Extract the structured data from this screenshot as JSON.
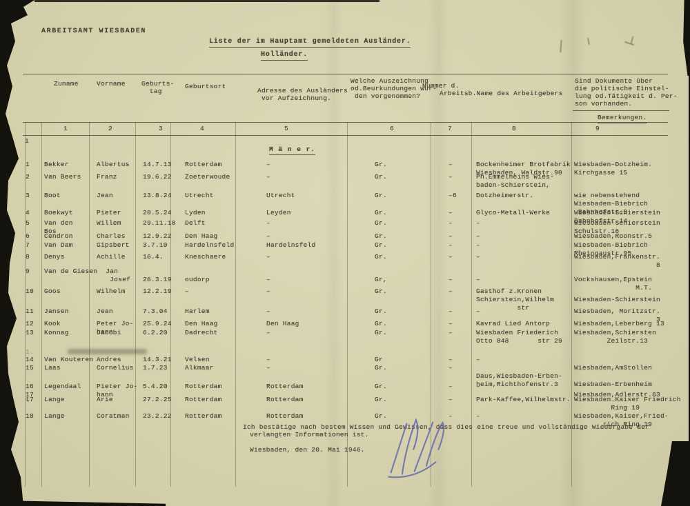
{
  "page": {
    "agency": "ARBEITSAMT WIESBADEN",
    "title": "Liste der im Hauptamt gemeldeten Ausländer.",
    "subtitle": "Holländer.",
    "section_heading": "M ä n e r.",
    "margin_marker": "1",
    "erased_marker": "1."
  },
  "table": {
    "headers": {
      "zuname": "Zuname",
      "vorname": "Vorname",
      "geburtstag": "Geburts-\n  tag",
      "geburtsort": "Geburtsort",
      "adresse": "Adresse des Ausländers\n vor Aufzeichnung.",
      "auszeichnung": "Welche Auszeichnung\nod.Beurkundungen wur-\n den vorgenommen?",
      "nummer": "Nummer d.",
      "arbeitgeber": "Arbeitsb.Name des Arbeitgebers",
      "dokumente": "Sind Dokumente über\ndie politische Einstel-\nlung od.Tätigkeit d. Per-\nson vorhanden.",
      "bemerkungen": "Bemerkungen."
    },
    "column_numbers": [
      "1",
      "2",
      "3",
      "4",
      "5",
      "6",
      "7",
      "8",
      "9"
    ],
    "rows": [
      [
        "1",
        "Bekker",
        "Albertus",
        "14.7.13",
        "Rotterdam",
        "–",
        "Gr.",
        "–",
        "Bockenheimer Brotfabrik\nWiesbaden, Waldstr.90",
        "Wiesbaden-Dotzheim.\nKirchgasse 15"
      ],
      [
        "2",
        "Van Beers",
        "Franz",
        "19.6.22",
        "Zoeterwoude",
        "–",
        "Gr.",
        "–",
        "Ph.Emmelheins Wies-\nbaden-Schierstein,",
        ""
      ],
      [
        "3",
        "Boot",
        "Jean",
        "13.8.24",
        "Utrecht",
        "Utrecht",
        "Gr.",
        "–6",
        "Dotzheimerstr.",
        "wie nebenstehend\nWiesbaden-Biebrich\n Bahnhofstr.9"
      ],
      [
        "4",
        "Boekwyt",
        "Pieter",
        "20.5.24",
        "Lyden",
        "Leyden",
        "Gr.",
        "–",
        "Glyco-Metall-Werke",
        "Wiesbaden-Schierstein\nBahnhofstr.14"
      ],
      [
        "5",
        "Van den\nBos",
        "Willem",
        "29.11.18",
        "Delft",
        "–",
        "Gr.",
        "–",
        "–",
        "Wiesbaden-Schierstein\nSchulstr.16"
      ],
      [
        "6",
        "Cendron",
        "Charles",
        "12.9.22",
        "Den Haag",
        "–",
        "Gr.",
        "–",
        "–",
        "Wiesbaden,Roonstr.5"
      ],
      [
        "7",
        "Van Dam",
        "Gipsbert",
        "3.7.10",
        "Hardelnsfeld",
        "Hardelnsfeld",
        "Gr.",
        "–",
        "–",
        "Wiesbaden-Biebrich\nRheingaustr.95"
      ],
      [
        "8",
        "Denys",
        "Achille",
        "16.4.",
        "Kneschaere",
        "–",
        "Gr.",
        "–",
        "–",
        "Wiesbaden,Frankenstr.\n                    8"
      ],
      [
        "9",
        "Van de Giesen  Jan\n                Josef",
        "",
        "\n26.3.19",
        "\noudorp",
        "\n–",
        "\nGr,",
        "\n–",
        "\n–",
        "\nVockshausen,Epstein\n               M.T."
      ],
      [
        "10",
        "Goos",
        "Wilhelm",
        "12.2.19",
        "–",
        "–",
        "Gr.",
        "–",
        "Gasthof z.Kronen\nSchierstein,Wilhelm\n          str",
        "\nWiesbaden-Schierstein"
      ],
      [
        "11",
        "Jansen",
        "Jean",
        "7.3.04",
        "Harlem",
        "–",
        "Gr.",
        "–",
        "–",
        "Wiesbaden, Moritzstr.\n                    3"
      ],
      [
        "12",
        "Kook",
        "Peter Jo-\nhann",
        "25.9.24",
        "Den Haag",
        "Den Haag",
        "Gr.",
        "–",
        "Kavrad Lied Antorp",
        "Wiesbaden,Leberberg 13"
      ],
      [
        "13",
        "Konnag",
        "Jacobi",
        "6.2.20",
        "Dadrecht",
        "–",
        "Gr.",
        "–",
        "Wiesbaden Friederich\nOtto 848       str 29",
        "Wiesbaden,Schiersten\n        Zeilstr.13"
      ],
      [
        "14",
        "Van Kouteren",
        "Andres",
        "14.3.21",
        "Velsen",
        "–",
        "Gr",
        "–",
        "–",
        "\nWiesbaden,AmStollen"
      ],
      [
        "15",
        "Laas",
        "Cornelius",
        "1.7.23",
        "Alkmaar",
        "–",
        "Gr.",
        "–",
        "\nDaus,Wiesbaden-Erben-\nheim,Richthofenstr.3",
        "\n\nWiesbaden-Erbenheim"
      ],
      [
        "16\n17",
        "Legendaal",
        "Pieter Jo-\nhann",
        "5.4.20",
        "Rotterdam",
        "Rotterdam",
        "Gr.",
        "–",
        "–",
        "\nWiesbaden,Adlerstr.63"
      ],
      [
        "17",
        "Lange",
        "Arie",
        "27.2.25",
        "Rotterdam",
        "Rotterdam",
        "Gr.",
        "–",
        "Park-Kaffee,Wilhelmstr.",
        "Wiesbaden.Kaiser Friedrich\n         Ring 19"
      ],
      [
        "18",
        "Lange",
        "Coratman",
        "23.2.22",
        "Rotterdam",
        "Rotterdam",
        "Gr.",
        "–",
        "–",
        "Wiesbaden,Kaiser,Fried-\n       rich Ring 19"
      ]
    ]
  },
  "footer": {
    "confirmation_line1": "Ich bestätige nach bestem Wissen und Gewissen, dass dies eine treue und vollständige Wiedergabe der",
    "confirmation_line2": "verlangten Informationen ist.",
    "date_line": "Wiesbaden, den 20. Mai 1946."
  }
}
